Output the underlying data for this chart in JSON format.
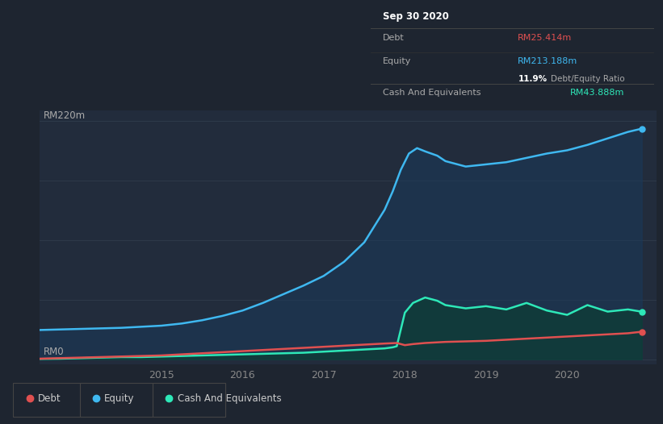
{
  "bg_color": "#1e2530",
  "plot_bg_color": "#222c3c",
  "title_box_bg": "#080808",
  "title": "Sep 30 2020",
  "ylabel_top": "RM220m",
  "ylabel_bottom": "RM0",
  "x_ticks": [
    2015,
    2016,
    2017,
    2018,
    2019,
    2020
  ],
  "x_tick_labels": [
    "2015",
    "2016",
    "2017",
    "2018",
    "2019",
    "2020"
  ],
  "x_range": [
    2013.5,
    2021.1
  ],
  "y_range": [
    -5,
    230
  ],
  "equity_color": "#3fb8f0",
  "equity_fill": "#1a3a5c",
  "debt_color": "#e05050",
  "cash_color": "#2ee8b8",
  "cash_fill": "#0d3d35",
  "legend_items": [
    {
      "label": "Debt",
      "color": "#e05050"
    },
    {
      "label": "Equity",
      "color": "#3fb8f0"
    },
    {
      "label": "Cash And Equivalents",
      "color": "#2ee8b8"
    }
  ],
  "equity_x": [
    2013.5,
    2013.75,
    2014.0,
    2014.25,
    2014.5,
    2014.75,
    2015.0,
    2015.25,
    2015.5,
    2015.75,
    2016.0,
    2016.25,
    2016.5,
    2016.75,
    2017.0,
    2017.25,
    2017.5,
    2017.6,
    2017.75,
    2017.85,
    2017.95,
    2018.05,
    2018.15,
    2018.25,
    2018.4,
    2018.5,
    2018.75,
    2019.0,
    2019.25,
    2019.5,
    2019.75,
    2020.0,
    2020.25,
    2020.5,
    2020.75,
    2020.92
  ],
  "equity_y": [
    27,
    27.5,
    28,
    28.5,
    29,
    30,
    31,
    33,
    36,
    40,
    45,
    52,
    60,
    68,
    77,
    90,
    108,
    120,
    138,
    155,
    175,
    190,
    195,
    192,
    188,
    183,
    178,
    180,
    182,
    186,
    190,
    193,
    198,
    204,
    210,
    213
  ],
  "debt_x": [
    2013.5,
    2013.75,
    2014.0,
    2014.25,
    2014.5,
    2014.75,
    2015.0,
    2015.25,
    2015.5,
    2015.75,
    2016.0,
    2016.25,
    2016.5,
    2016.75,
    2017.0,
    2017.25,
    2017.5,
    2017.75,
    2017.9,
    2018.0,
    2018.1,
    2018.25,
    2018.5,
    2018.75,
    2019.0,
    2019.25,
    2019.5,
    2019.75,
    2020.0,
    2020.25,
    2020.5,
    2020.75,
    2020.92
  ],
  "debt_y": [
    0.5,
    1,
    1.5,
    2,
    2.5,
    3,
    3.5,
    4.5,
    5.5,
    6.5,
    7.5,
    8.5,
    9.5,
    10.5,
    11.5,
    12.5,
    13.5,
    14.5,
    15,
    13,
    14,
    15,
    16,
    16.5,
    17,
    18,
    19,
    20,
    21,
    22,
    23,
    24,
    25.4
  ],
  "cash_x": [
    2013.5,
    2013.75,
    2014.0,
    2014.25,
    2014.5,
    2014.75,
    2015.0,
    2015.25,
    2015.5,
    2015.75,
    2016.0,
    2016.25,
    2016.5,
    2016.75,
    2017.0,
    2017.25,
    2017.5,
    2017.75,
    2017.85,
    2017.9,
    2018.0,
    2018.1,
    2018.25,
    2018.4,
    2018.5,
    2018.75,
    2019.0,
    2019.25,
    2019.5,
    2019.75,
    2020.0,
    2020.25,
    2020.5,
    2020.75,
    2020.92
  ],
  "cash_y": [
    0.3,
    0.5,
    1,
    1.5,
    2,
    2,
    2.5,
    3,
    3.5,
    4,
    4.5,
    5,
    5.5,
    6,
    7,
    8,
    9,
    10,
    11,
    12,
    43,
    52,
    57,
    54,
    50,
    47,
    49,
    46,
    52,
    45,
    41,
    50,
    44,
    46,
    43.9
  ]
}
